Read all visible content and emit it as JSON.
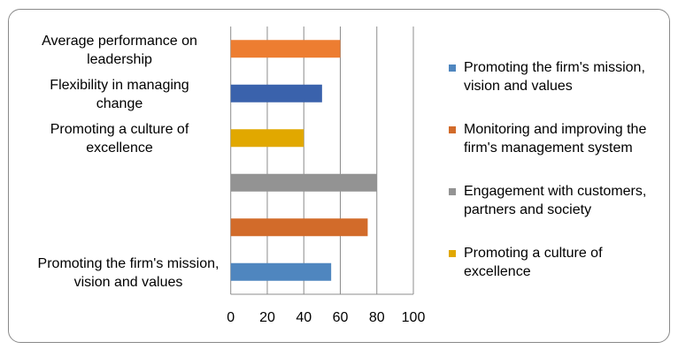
{
  "chart_data": {
    "type": "bar",
    "orientation": "horizontal",
    "title": "",
    "xlabel": "",
    "ylabel": "",
    "xlim": [
      0,
      100
    ],
    "xticks": [
      "0",
      "20",
      "40",
      "60",
      "80",
      "100"
    ],
    "grid": "vertical",
    "categories": [
      "Promoting the firm's mission, vision and values",
      "",
      "",
      "Promoting a culture of excellence",
      "Flexibility in managing change",
      "Average performance on leadership"
    ],
    "values": [
      55,
      75,
      80,
      40,
      50,
      60
    ],
    "bar_colors": [
      "#4f86bf",
      "#d26b2a",
      "#939393",
      "#e1a800",
      "#3a62ac",
      "#ed7d31"
    ],
    "legend_position": "right",
    "legend": [
      {
        "label": "Promoting the firm's mission, vision and values",
        "color": "#4f86bf"
      },
      {
        "label": "Monitoring and improving the firm's management system",
        "color": "#d26b2a"
      },
      {
        "label": "Engagement with customers, partners and society",
        "color": "#939393"
      },
      {
        "label": "Promoting a culture of excellence",
        "color": "#e1a800"
      }
    ]
  }
}
